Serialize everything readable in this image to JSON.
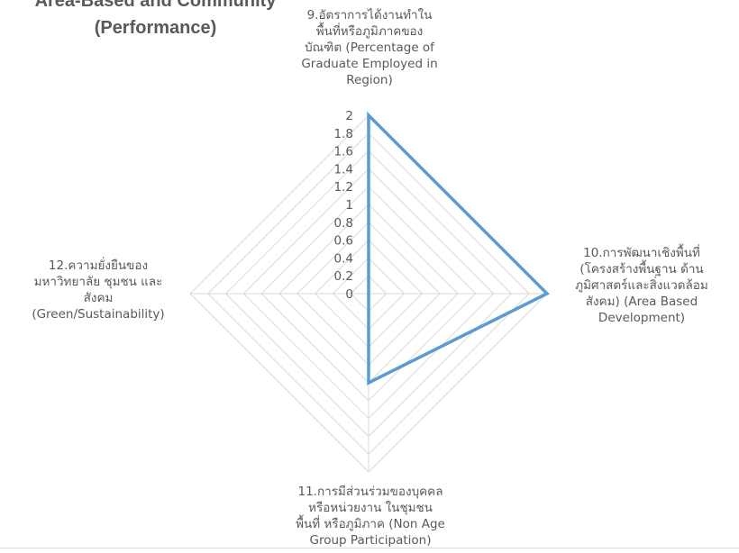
{
  "chart_data": {
    "type": "radar",
    "title_line1": "Area-Based and Community",
    "title_line2": "(Performance)",
    "axes": [
      [
        "9.อัตราการได้งานทำใน",
        "พื้นที่หรือภูมิภาคของ",
        "บัณฑิต (Percentage of",
        "Graduate Employed in",
        "Region)"
      ],
      [
        "10.การพัฒนาเชิงพื้นที่",
        "(โครงสร้างพื้นฐาน ด้าน",
        "ภูมิศาสตร์และสิ่งแวดล้อม",
        "สังคม) (Area Based",
        "Development)"
      ],
      [
        "11.การมีส่วนร่วมของบุคคล",
        "หรือหน่วยงาน ในชุมชน",
        "พื้นที่ หรือภูมิภาค (Non Age",
        "Group Participation)"
      ],
      [
        "12.ความยั่งยืนของ",
        "มหาวิทยาลัย ชุมชน และ",
        "สังคม",
        "(Green/Sustainability)"
      ]
    ],
    "ticks": [
      "0",
      "0.2",
      "0.4",
      "0.6",
      "0.8",
      "1",
      "1.2",
      "1.4",
      "1.6",
      "1.8",
      "2"
    ],
    "rlim": [
      0,
      2
    ],
    "series": [
      {
        "values": [
          2,
          2,
          1,
          0
        ],
        "color": "#5b9bd5"
      }
    ],
    "grid": true,
    "gridColor": "#d9d9d9"
  }
}
